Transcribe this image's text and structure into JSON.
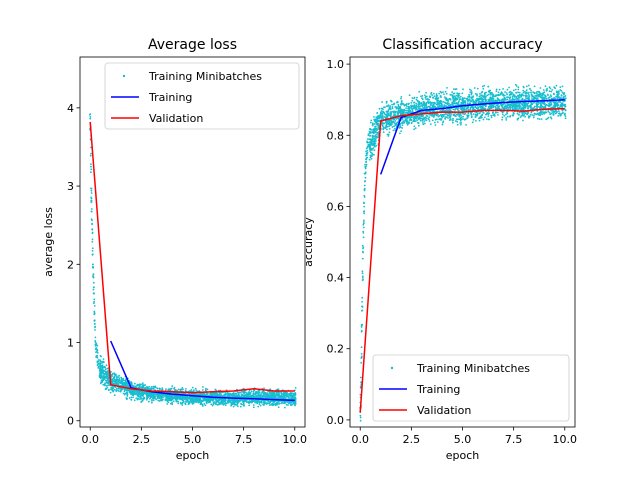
{
  "chart_data": [
    {
      "type": "line",
      "title": "Average loss",
      "xlabel": "epoch",
      "ylabel": "average loss",
      "xlim": [
        -0.5,
        10.5
      ],
      "ylim": [
        -0.08,
        4.65
      ],
      "xticks": [
        0.0,
        2.5,
        5.0,
        7.5,
        10.0
      ],
      "xtick_labels": [
        "0.0",
        "2.5",
        "5.0",
        "7.5",
        "10.0"
      ],
      "yticks": [
        0,
        1,
        2,
        3,
        4
      ],
      "ytick_labels": [
        "0",
        "1",
        "2",
        "3",
        "4"
      ],
      "legend_position": "top-right",
      "grid": false,
      "series": [
        {
          "name": "Training Minibatches",
          "kind": "scatter",
          "color": "#17becf",
          "points": {
            "x": [
              0.0,
              0.02,
              0.04,
              0.05,
              0.06,
              0.08,
              0.1,
              0.12,
              0.14,
              0.16,
              0.18,
              0.2,
              0.22,
              0.25,
              0.28,
              0.3,
              0.33,
              0.36,
              0.4,
              0.45,
              0.5,
              0.55,
              0.6,
              0.7,
              0.8,
              0.9,
              1.0,
              1.2,
              1.5,
              1.8,
              2.0,
              2.5,
              3.0,
              3.5,
              4.0,
              4.5,
              5.0,
              5.5,
              6.0,
              6.5,
              7.0,
              7.5,
              8.0,
              8.5,
              9.0,
              9.5,
              10.0
            ],
            "y": [
              3.85,
              3.6,
              3.3,
              2.9,
              2.75,
              2.6,
              2.35,
              2.1,
              1.9,
              1.75,
              1.6,
              1.4,
              1.25,
              1.1,
              1.0,
              0.92,
              0.85,
              0.78,
              0.72,
              0.68,
              0.63,
              0.6,
              0.58,
              0.55,
              0.52,
              0.5,
              0.47,
              0.44,
              0.42,
              0.4,
              0.38,
              0.36,
              0.35,
              0.34,
              0.33,
              0.32,
              0.31,
              0.31,
              0.3,
              0.3,
              0.29,
              0.29,
              0.29,
              0.28,
              0.28,
              0.28,
              0.28
            ]
          },
          "band": {
            "x": [
              0.5,
              1,
              2,
              3,
              4,
              5,
              6,
              7,
              8,
              9,
              10
            ],
            "low": [
              0.4,
              0.33,
              0.25,
              0.22,
              0.2,
              0.18,
              0.17,
              0.16,
              0.16,
              0.15,
              0.15
            ],
            "high": [
              0.9,
              0.7,
              0.55,
              0.48,
              0.45,
              0.43,
              0.42,
              0.42,
              0.43,
              0.43,
              0.44
            ]
          }
        },
        {
          "name": "Training",
          "kind": "line",
          "color": "#0000ff",
          "x": [
            1,
            2,
            3,
            4,
            5,
            6,
            7,
            8,
            9,
            10
          ],
          "y": [
            1.02,
            0.42,
            0.37,
            0.34,
            0.32,
            0.3,
            0.29,
            0.28,
            0.27,
            0.26
          ]
        },
        {
          "name": "Validation",
          "kind": "line",
          "color": "#ff0000",
          "x": [
            0,
            1,
            2,
            3,
            4,
            5,
            6,
            7,
            8,
            9,
            10
          ],
          "y": [
            3.82,
            0.46,
            0.41,
            0.38,
            0.37,
            0.36,
            0.37,
            0.38,
            0.41,
            0.38,
            0.38
          ]
        }
      ]
    },
    {
      "type": "line",
      "title": "Classification accuracy",
      "xlabel": "epoch",
      "ylabel": "accuracy",
      "xlim": [
        -0.5,
        10.5
      ],
      "ylim": [
        -0.02,
        1.02
      ],
      "xticks": [
        0.0,
        2.5,
        5.0,
        7.5,
        10.0
      ],
      "xtick_labels": [
        "0.0",
        "2.5",
        "5.0",
        "7.5",
        "10.0"
      ],
      "yticks": [
        0.0,
        0.2,
        0.4,
        0.6,
        0.8,
        1.0
      ],
      "ytick_labels": [
        "0.0",
        "0.2",
        "0.4",
        "0.6",
        "0.8",
        "1.0"
      ],
      "legend_position": "bottom-right",
      "grid": false,
      "series": [
        {
          "name": "Training Minibatches",
          "kind": "scatter",
          "color": "#17becf",
          "points": {
            "x": [
              0.0,
              0.02,
              0.04,
              0.06,
              0.08,
              0.1,
              0.12,
              0.14,
              0.16,
              0.18,
              0.2,
              0.22,
              0.25,
              0.28,
              0.3,
              0.33,
              0.36,
              0.4,
              0.45,
              0.5,
              0.6,
              0.7,
              0.8,
              1.0,
              1.5,
              2.0,
              3.0,
              4.0,
              5.0,
              6.0,
              7.0,
              8.0,
              9.0,
              10.0
            ],
            "y": [
              0.02,
              0.05,
              0.1,
              0.18,
              0.25,
              0.33,
              0.4,
              0.47,
              0.53,
              0.58,
              0.63,
              0.67,
              0.7,
              0.72,
              0.74,
              0.76,
              0.77,
              0.78,
              0.79,
              0.8,
              0.81,
              0.82,
              0.83,
              0.84,
              0.85,
              0.86,
              0.865,
              0.87,
              0.875,
              0.875,
              0.88,
              0.88,
              0.88,
              0.88
            ]
          },
          "band": {
            "x": [
              0.5,
              1,
              2,
              3,
              4,
              5,
              6,
              7,
              8,
              9,
              10
            ],
            "low": [
              0.68,
              0.78,
              0.8,
              0.81,
              0.82,
              0.82,
              0.83,
              0.83,
              0.83,
              0.83,
              0.83
            ],
            "high": [
              0.86,
              0.9,
              0.92,
              0.93,
              0.94,
              0.94,
              0.95,
              0.95,
              0.95,
              0.95,
              0.95
            ]
          }
        },
        {
          "name": "Training",
          "kind": "line",
          "color": "#0000ff",
          "x": [
            1,
            2,
            3,
            4,
            5,
            6,
            7,
            8,
            9,
            10
          ],
          "y": [
            0.69,
            0.85,
            0.87,
            0.875,
            0.883,
            0.888,
            0.892,
            0.895,
            0.897,
            0.9
          ]
        },
        {
          "name": "Validation",
          "kind": "line",
          "color": "#ff0000",
          "x": [
            0,
            1,
            2,
            3,
            4,
            5,
            6,
            7,
            8,
            9,
            10
          ],
          "y": [
            0.02,
            0.84,
            0.855,
            0.86,
            0.865,
            0.865,
            0.87,
            0.87,
            0.868,
            0.873,
            0.875
          ]
        }
      ]
    }
  ]
}
